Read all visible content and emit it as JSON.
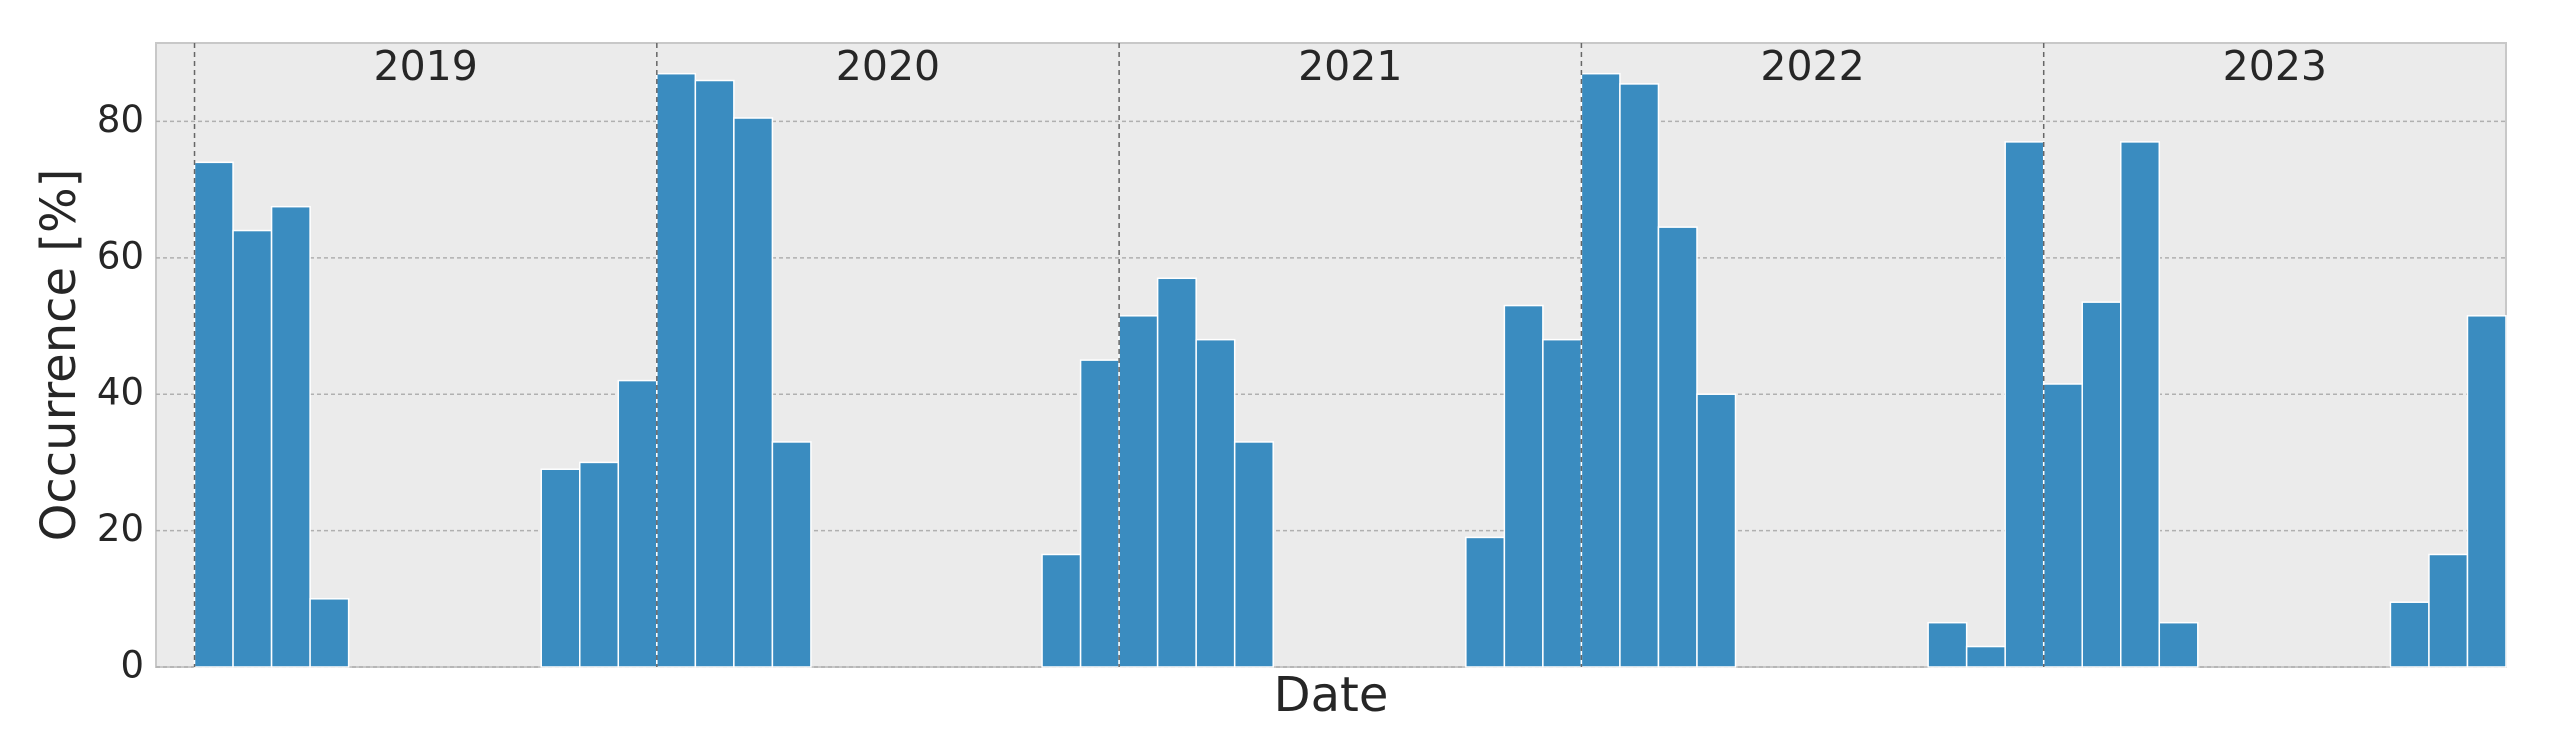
{
  "chart_data": {
    "type": "bar",
    "x_label": "Date",
    "y_label": "Occurrence [%]",
    "year_labels": [
      "2019",
      "2020",
      "2021",
      "2022",
      "2023"
    ],
    "categories": [
      null,
      null,
      null,
      null,
      null,
      null,
      null,
      null,
      null,
      null,
      null,
      null,
      null,
      null,
      null,
      null,
      null,
      null,
      null,
      null,
      null,
      null,
      null,
      null,
      null,
      null,
      null,
      null,
      null,
      null,
      null,
      null,
      null,
      null,
      null,
      null,
      null,
      null,
      null,
      null,
      null,
      null,
      null,
      null,
      null,
      null,
      null,
      null,
      null,
      null,
      null,
      null,
      null,
      null,
      null,
      null,
      null,
      null,
      null,
      null
    ],
    "values": [
      74,
      64,
      67.5,
      10,
      0,
      0,
      0,
      0,
      0,
      29,
      30,
      42,
      87,
      86,
      80.5,
      33,
      0,
      0,
      0,
      0,
      0,
      0,
      16.5,
      45,
      51.5,
      57,
      48,
      33,
      0,
      0,
      0,
      0,
      0,
      19,
      53,
      48,
      87,
      85.5,
      64.5,
      40,
      0,
      0,
      0,
      0,
      0,
      6.5,
      3,
      77,
      41.5,
      53.5,
      77,
      6.5,
      0,
      0,
      0,
      0,
      0,
      9.5,
      16.5,
      51.5
    ],
    "color": "#3a8cc0",
    "ylim": [
      0,
      91.5
    ],
    "yticks": [
      0,
      20,
      40,
      60,
      80
    ],
    "grid": true
  }
}
